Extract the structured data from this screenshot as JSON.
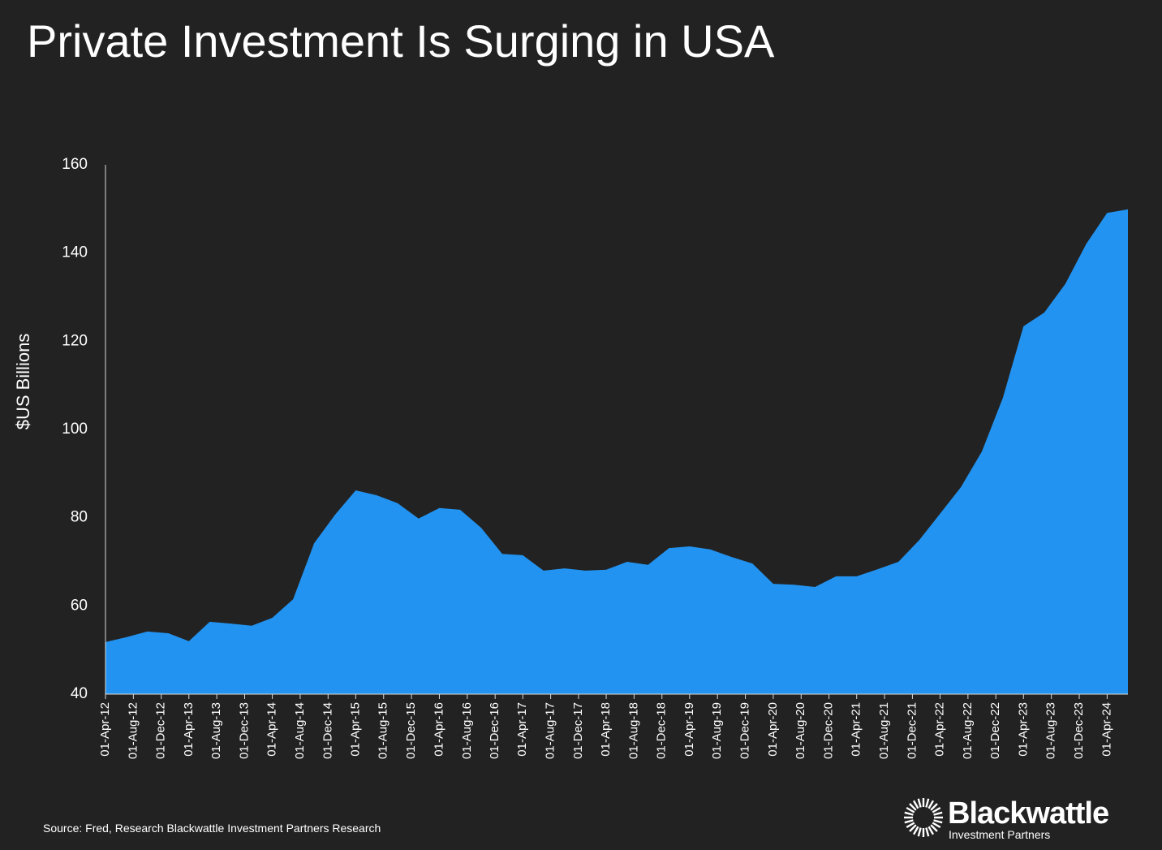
{
  "chart_data": {
    "type": "area",
    "title": "Private Investment Is Surging in USA",
    "y_label": "$US Billions",
    "source": "Source: Fred, Research Blackwattle Investment Partners Research",
    "logo": {
      "name": "Blackwattle",
      "tagline": "Investment Partners"
    },
    "color": "#2293f0",
    "x": [
      "2012-04-01",
      "2012-07-01",
      "2012-10-01",
      "2013-01-01",
      "2013-04-01",
      "2013-07-01",
      "2013-10-01",
      "2014-01-01",
      "2014-04-01",
      "2014-07-01",
      "2014-10-01",
      "2015-01-01",
      "2015-04-01",
      "2015-07-01",
      "2015-10-01",
      "2016-01-01",
      "2016-04-01",
      "2016-07-01",
      "2016-10-01",
      "2017-01-01",
      "2017-04-01",
      "2017-07-01",
      "2017-10-01",
      "2018-01-01",
      "2018-04-01",
      "2018-07-01",
      "2018-10-01",
      "2019-01-01",
      "2019-04-01",
      "2019-07-01",
      "2019-10-01",
      "2020-01-01",
      "2020-04-01",
      "2020-07-01",
      "2020-10-01",
      "2021-01-01",
      "2021-04-01",
      "2021-07-01",
      "2021-10-01",
      "2022-01-01",
      "2022-04-01",
      "2022-07-01",
      "2022-10-01",
      "2023-01-01",
      "2023-04-01",
      "2023-07-01",
      "2023-10-01",
      "2024-01-01",
      "2024-04-01",
      "2024-07-01"
    ],
    "values": [
      51.8,
      52.9,
      54.2,
      53.8,
      52.0,
      56.4,
      56.0,
      55.5,
      57.3,
      61.5,
      74.2,
      80.7,
      86.2,
      85.1,
      83.3,
      79.8,
      82.2,
      81.8,
      77.7,
      71.8,
      71.5,
      68.0,
      68.5,
      68.0,
      68.2,
      70.0,
      69.3,
      73.1,
      73.5,
      72.8,
      71.1,
      69.6,
      65.0,
      64.8,
      64.3,
      66.7,
      66.7,
      68.3,
      70.0,
      75.0,
      80.9,
      86.9,
      95.0,
      107.2,
      123.4,
      126.5,
      133.0,
      142.1,
      149.1,
      149.9
    ],
    "xlim": [
      "2012-04-01",
      "2024-07-01"
    ],
    "xticks": [
      {
        "value": "2012-04-01",
        "label": "01-Apr-12"
      },
      {
        "value": "2012-08-01",
        "label": "01-Aug-12"
      },
      {
        "value": "2012-12-01",
        "label": "01-Dec-12"
      },
      {
        "value": "2013-04-01",
        "label": "01-Apr-13"
      },
      {
        "value": "2013-08-01",
        "label": "01-Aug-13"
      },
      {
        "value": "2013-12-01",
        "label": "01-Dec-13"
      },
      {
        "value": "2014-04-01",
        "label": "01-Apr-14"
      },
      {
        "value": "2014-08-01",
        "label": "01-Aug-14"
      },
      {
        "value": "2014-12-01",
        "label": "01-Dec-14"
      },
      {
        "value": "2015-04-01",
        "label": "01-Apr-15"
      },
      {
        "value": "2015-08-01",
        "label": "01-Aug-15"
      },
      {
        "value": "2015-12-01",
        "label": "01-Dec-15"
      },
      {
        "value": "2016-04-01",
        "label": "01-Apr-16"
      },
      {
        "value": "2016-08-01",
        "label": "01-Aug-16"
      },
      {
        "value": "2016-12-01",
        "label": "01-Dec-16"
      },
      {
        "value": "2017-04-01",
        "label": "01-Apr-17"
      },
      {
        "value": "2017-08-01",
        "label": "01-Aug-17"
      },
      {
        "value": "2017-12-01",
        "label": "01-Dec-17"
      },
      {
        "value": "2018-04-01",
        "label": "01-Apr-18"
      },
      {
        "value": "2018-08-01",
        "label": "01-Aug-18"
      },
      {
        "value": "2018-12-01",
        "label": "01-Dec-18"
      },
      {
        "value": "2019-04-01",
        "label": "01-Apr-19"
      },
      {
        "value": "2019-08-01",
        "label": "01-Aug-19"
      },
      {
        "value": "2019-12-01",
        "label": "01-Dec-19"
      },
      {
        "value": "2020-04-01",
        "label": "01-Apr-20"
      },
      {
        "value": "2020-08-01",
        "label": "01-Aug-20"
      },
      {
        "value": "2020-12-01",
        "label": "01-Dec-20"
      },
      {
        "value": "2021-04-01",
        "label": "01-Apr-21"
      },
      {
        "value": "2021-08-01",
        "label": "01-Aug-21"
      },
      {
        "value": "2021-12-01",
        "label": "01-Dec-21"
      },
      {
        "value": "2022-04-01",
        "label": "01-Apr-22"
      },
      {
        "value": "2022-08-01",
        "label": "01-Aug-22"
      },
      {
        "value": "2022-12-01",
        "label": "01-Dec-22"
      },
      {
        "value": "2023-04-01",
        "label": "01-Apr-23"
      },
      {
        "value": "2023-08-01",
        "label": "01-Aug-23"
      },
      {
        "value": "2023-12-01",
        "label": "01-Dec-23"
      },
      {
        "value": "2024-04-01",
        "label": "01-Apr-24"
      }
    ],
    "ylim": [
      40,
      160
    ],
    "yticks": [
      40,
      60,
      80,
      100,
      120,
      140,
      160
    ],
    "grid": false
  }
}
